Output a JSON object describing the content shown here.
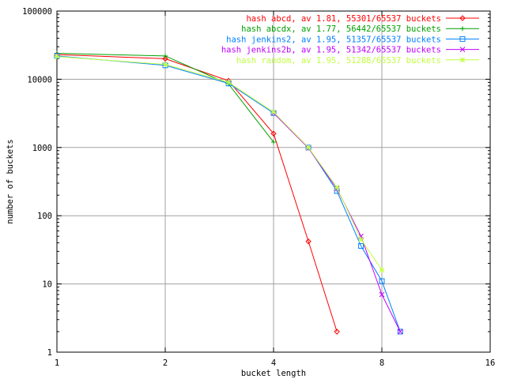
{
  "chart_data": {
    "type": "line",
    "title": "",
    "xlabel": "bucket length",
    "ylabel": "number of buckets",
    "x_scale": "log2",
    "y_scale": "log10",
    "xlim": [
      1,
      16
    ],
    "ylim": [
      1,
      100000
    ],
    "x_ticks": [
      1,
      2,
      4,
      8,
      16
    ],
    "x_tick_labels": [
      "1",
      "2",
      "4",
      "8",
      "16"
    ],
    "y_ticks": [
      1,
      10,
      100,
      1000,
      10000,
      100000
    ],
    "y_tick_labels": [
      "1",
      "10",
      "100",
      "1000",
      "10000",
      "100000"
    ],
    "grid": true,
    "legend_position": "top-right",
    "series": [
      {
        "name": "hash abcd, av 1.81, 55301/65537 buckets",
        "color": "#ff0000",
        "marker": "diamond",
        "x": [
          1,
          2,
          3,
          4,
          5,
          6
        ],
        "y": [
          23000,
          20000,
          9500,
          1600,
          42,
          2
        ]
      },
      {
        "name": "hash abcdx, av 1.77, 56442/65537 buckets",
        "color": "#00a000",
        "marker": "plus",
        "x": [
          1,
          2,
          3,
          4
        ],
        "y": [
          24000,
          22000,
          8500,
          1200
        ]
      },
      {
        "name": "hash jenkins2, av 1.95, 51357/65537 buckets",
        "color": "#0080ff",
        "marker": "square",
        "x": [
          1,
          2,
          3,
          4,
          5,
          6,
          7,
          8,
          9
        ],
        "y": [
          22000,
          16000,
          8700,
          3200,
          1000,
          230,
          36,
          11,
          2
        ]
      },
      {
        "name": "hash jenkins2b, av 1.95, 51342/65537 buckets",
        "color": "#c000ff",
        "marker": "x",
        "x": [
          4,
          5,
          6,
          7,
          8,
          9
        ],
        "y": [
          3200,
          980,
          250,
          50,
          7,
          2
        ]
      },
      {
        "name": "hash random, av 1.95, 51288/65537 buckets",
        "color": "#c0ff40",
        "marker": "star",
        "x": [
          1,
          2,
          3,
          4,
          5,
          6,
          7,
          8
        ],
        "y": [
          21500,
          16500,
          9000,
          3300,
          1000,
          260,
          45,
          16
        ]
      }
    ]
  }
}
